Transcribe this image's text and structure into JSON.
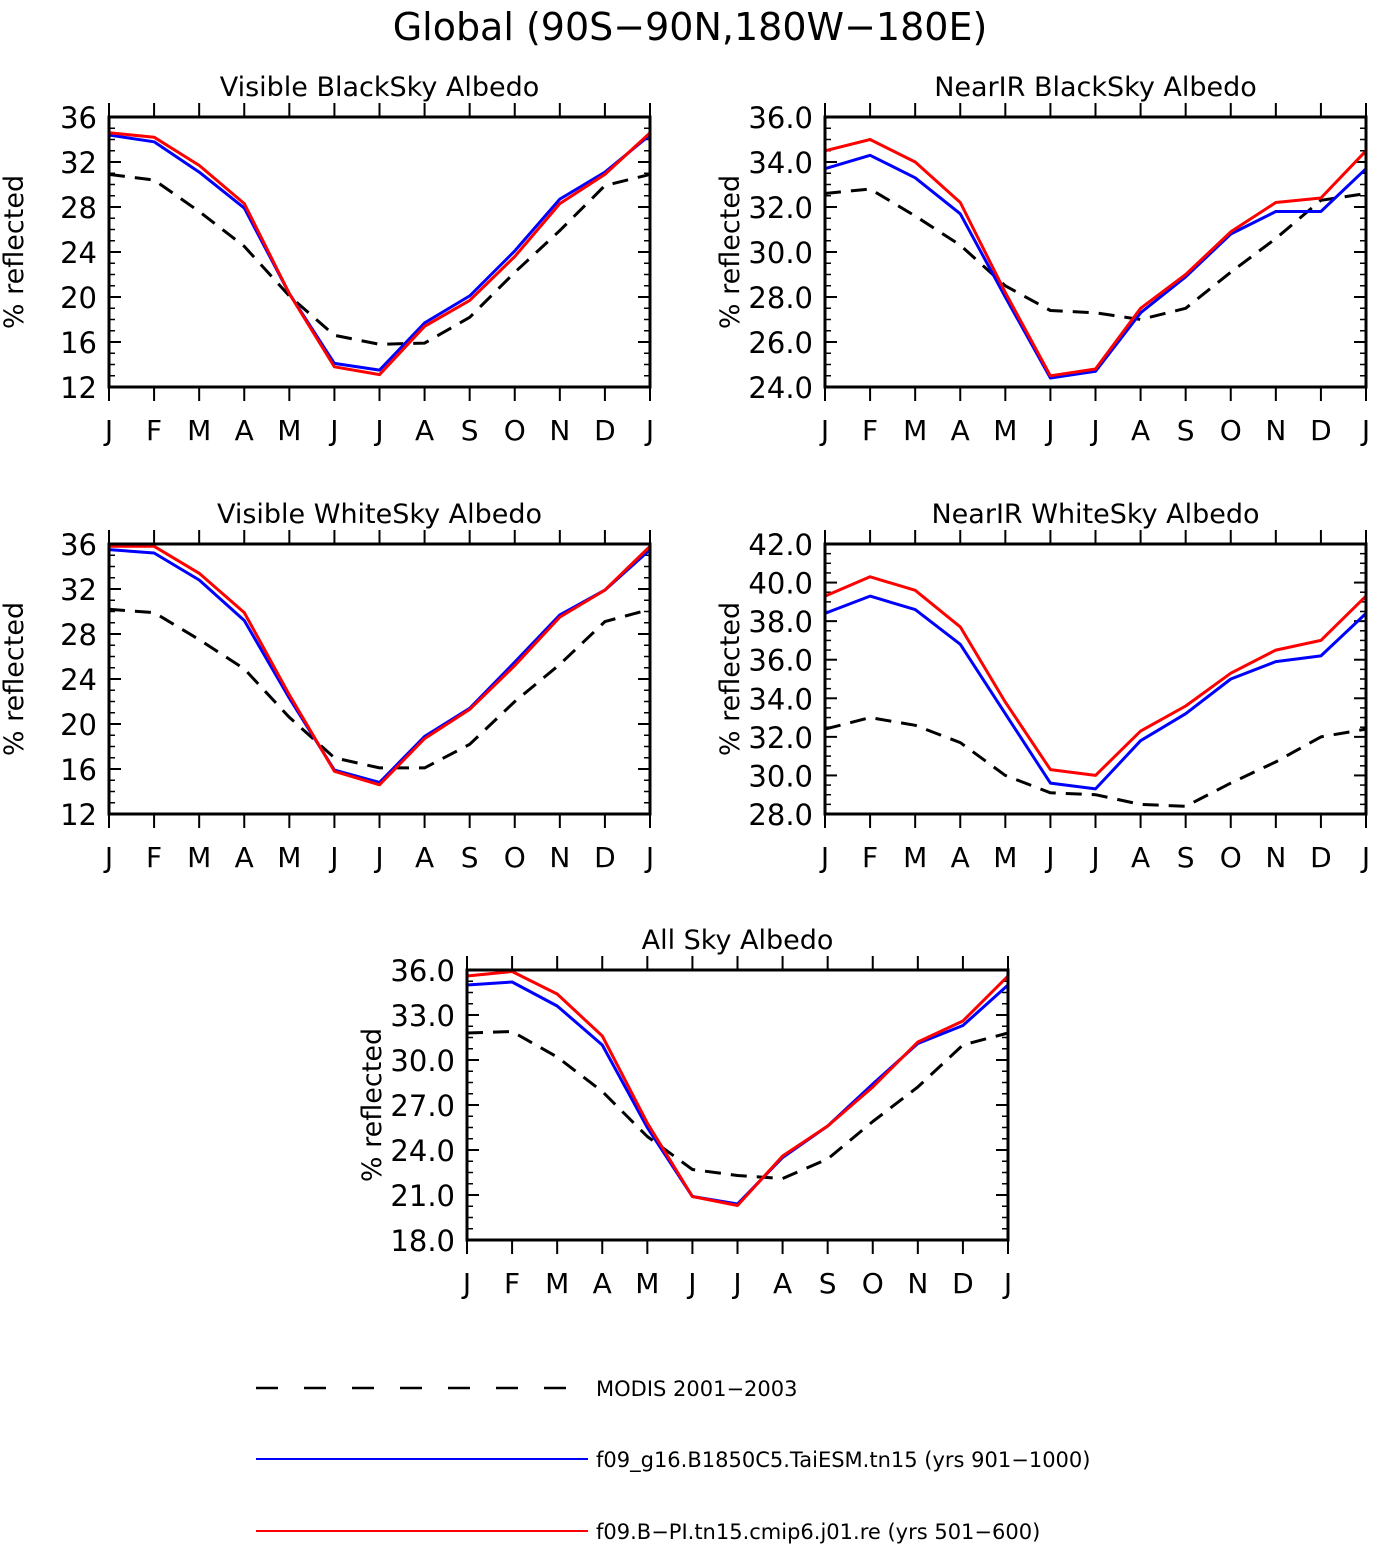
{
  "figure_title": "Global (90S−90N,180W−180E)",
  "legend": [
    {
      "label": "MODIS 2001−2003",
      "color": "#000000",
      "dash": true
    },
    {
      "label": "f09_g16.B1850C5.TaiESM.tn15 (yrs 901−1000)",
      "color": "#0000ff",
      "dash": false
    },
    {
      "label": "f09.B−PI.tn15.cmip6.j01.re (yrs 501−600)",
      "color": "#ff0000",
      "dash": false
    }
  ],
  "chart_data": [
    {
      "type": "line",
      "title": "Visible BlackSky Albedo",
      "ylabel": "% reflected",
      "categories": [
        "J",
        "F",
        "M",
        "A",
        "M",
        "J",
        "J",
        "A",
        "S",
        "O",
        "N",
        "D",
        "J"
      ],
      "ylim": [
        12,
        36
      ],
      "yticks": [
        "12",
        "16",
        "20",
        "24",
        "28",
        "32",
        "36"
      ],
      "series": [
        {
          "name": "MODIS 2001−2003",
          "color": "#000000",
          "dash": true,
          "values": [
            30.9,
            30.4,
            27.6,
            24.5,
            20.1,
            16.6,
            15.8,
            15.9,
            18.2,
            22.2,
            25.9,
            29.9,
            30.9
          ]
        },
        {
          "name": "f09_g16.B1850C5.TaiESM.tn15 (yrs 901−1000)",
          "color": "#0000ff",
          "dash": false,
          "values": [
            34.4,
            33.8,
            31.1,
            27.9,
            20.3,
            14.1,
            13.5,
            17.7,
            20.1,
            24.1,
            28.7,
            31.1,
            34.4
          ]
        },
        {
          "name": "f09.B−PI.tn15.cmip6.j01.re (yrs 501−600)",
          "color": "#ff0000",
          "dash": false,
          "values": [
            34.6,
            34.2,
            31.7,
            28.3,
            20.3,
            13.8,
            13.1,
            17.4,
            19.7,
            23.6,
            28.3,
            30.9,
            34.6
          ]
        }
      ]
    },
    {
      "type": "line",
      "title": "NearIR BlackSky Albedo",
      "ylabel": "% reflected",
      "categories": [
        "J",
        "F",
        "M",
        "A",
        "M",
        "J",
        "J",
        "A",
        "S",
        "O",
        "N",
        "D",
        "J"
      ],
      "ylim": [
        24,
        36
      ],
      "yticks": [
        "24.0",
        "26.0",
        "28.0",
        "30.0",
        "32.0",
        "34.0",
        "36.0"
      ],
      "series": [
        {
          "name": "MODIS 2001−2003",
          "color": "#000000",
          "dash": true,
          "values": [
            32.6,
            32.8,
            31.6,
            30.3,
            28.5,
            27.4,
            27.3,
            27.0,
            27.5,
            29.1,
            30.6,
            32.3,
            32.6
          ]
        },
        {
          "name": "f09_g16.B1850C5.TaiESM.tn15 (yrs 901−1000)",
          "color": "#0000ff",
          "dash": false,
          "values": [
            33.7,
            34.3,
            33.3,
            31.7,
            28.0,
            24.4,
            24.7,
            27.3,
            28.9,
            30.8,
            31.8,
            31.8,
            33.7
          ]
        },
        {
          "name": "f09.B−PI.tn15.cmip6.j01.re (yrs 501−600)",
          "color": "#ff0000",
          "dash": false,
          "values": [
            34.5,
            35.0,
            34.0,
            32.2,
            28.2,
            24.5,
            24.8,
            27.5,
            29.0,
            30.9,
            32.2,
            32.4,
            34.5
          ]
        }
      ]
    },
    {
      "type": "line",
      "title": "Visible WhiteSky Albedo",
      "ylabel": "% reflected",
      "categories": [
        "J",
        "F",
        "M",
        "A",
        "M",
        "J",
        "J",
        "A",
        "S",
        "O",
        "N",
        "D",
        "J"
      ],
      "ylim": [
        12,
        36
      ],
      "yticks": [
        "12",
        "16",
        "20",
        "24",
        "28",
        "32",
        "36"
      ],
      "series": [
        {
          "name": "MODIS 2001−2003",
          "color": "#000000",
          "dash": true,
          "values": [
            30.2,
            29.9,
            27.5,
            24.9,
            20.6,
            17.0,
            16.1,
            16.1,
            18.2,
            22.0,
            25.3,
            29.1,
            30.2
          ]
        },
        {
          "name": "f09_g16.B1850C5.TaiESM.tn15 (yrs 901−1000)",
          "color": "#0000ff",
          "dash": false,
          "values": [
            35.5,
            35.2,
            32.8,
            29.2,
            22.3,
            15.9,
            14.8,
            18.9,
            21.4,
            25.5,
            29.7,
            31.9,
            35.5
          ]
        },
        {
          "name": "f09.B−PI.tn15.cmip6.j01.re (yrs 501−600)",
          "color": "#ff0000",
          "dash": false,
          "values": [
            35.8,
            35.8,
            33.4,
            29.9,
            22.6,
            15.8,
            14.6,
            18.7,
            21.3,
            25.2,
            29.5,
            31.9,
            35.8
          ]
        }
      ]
    },
    {
      "type": "line",
      "title": "NearIR WhiteSky Albedo",
      "ylabel": "% reflected",
      "categories": [
        "J",
        "F",
        "M",
        "A",
        "M",
        "J",
        "J",
        "A",
        "S",
        "O",
        "N",
        "D",
        "J"
      ],
      "ylim": [
        28,
        42
      ],
      "yticks": [
        "28.0",
        "30.0",
        "32.0",
        "34.0",
        "36.0",
        "38.0",
        "40.0",
        "42.0"
      ],
      "series": [
        {
          "name": "MODIS 2001−2003",
          "color": "#000000",
          "dash": true,
          "values": [
            32.4,
            33.0,
            32.6,
            31.7,
            30.0,
            29.1,
            29.0,
            28.5,
            28.4,
            29.6,
            30.7,
            32.0,
            32.4
          ]
        },
        {
          "name": "f09_g16.B1850C5.TaiESM.tn15 (yrs 901−1000)",
          "color": "#0000ff",
          "dash": false,
          "values": [
            38.4,
            39.3,
            38.6,
            36.8,
            33.2,
            29.6,
            29.3,
            31.8,
            33.2,
            35.0,
            35.9,
            36.2,
            38.4
          ]
        },
        {
          "name": "f09.B−PI.tn15.cmip6.j01.re (yrs 501−600)",
          "color": "#ff0000",
          "dash": false,
          "values": [
            39.3,
            40.3,
            39.6,
            37.7,
            33.8,
            30.3,
            30.0,
            32.3,
            33.6,
            35.3,
            36.5,
            37.0,
            39.3
          ]
        }
      ]
    },
    {
      "type": "line",
      "title": "All Sky Albedo",
      "ylabel": "% reflected",
      "categories": [
        "J",
        "F",
        "M",
        "A",
        "M",
        "J",
        "J",
        "A",
        "S",
        "O",
        "N",
        "D",
        "J"
      ],
      "ylim": [
        18,
        36
      ],
      "yticks": [
        "18.0",
        "21.0",
        "24.0",
        "27.0",
        "30.0",
        "33.0",
        "36.0"
      ],
      "series": [
        {
          "name": "MODIS 2001−2003",
          "color": "#000000",
          "dash": true,
          "values": [
            31.8,
            31.9,
            30.2,
            27.9,
            24.9,
            22.7,
            22.3,
            22.1,
            23.4,
            25.9,
            28.2,
            31.0,
            31.8
          ]
        },
        {
          "name": "f09_g16.B1850C5.TaiESM.tn15 (yrs 901−1000)",
          "color": "#0000ff",
          "dash": false,
          "values": [
            35.0,
            35.2,
            33.6,
            31.0,
            25.5,
            20.9,
            20.4,
            23.5,
            25.6,
            28.4,
            31.1,
            32.3,
            35.0
          ]
        },
        {
          "name": "f09.B−PI.tn15.cmip6.j01.re (yrs 501−600)",
          "color": "#ff0000",
          "dash": false,
          "values": [
            35.6,
            35.9,
            34.4,
            31.6,
            25.8,
            20.9,
            20.3,
            23.6,
            25.6,
            28.2,
            31.2,
            32.6,
            35.6
          ]
        }
      ]
    }
  ]
}
